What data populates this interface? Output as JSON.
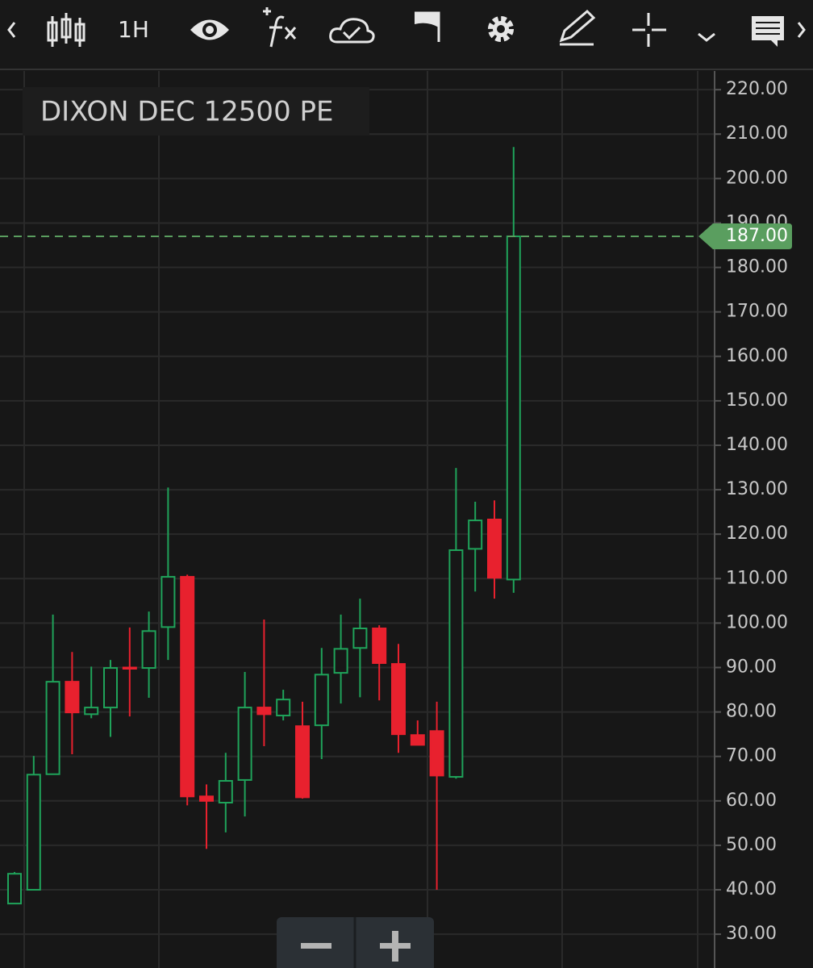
{
  "toolbar": {
    "interval": "1H"
  },
  "chart_data": {
    "type": "candlestick",
    "title": "DIXON DEC 12500 PE",
    "open": [
      36.9,
      40,
      66,
      86.8,
      79.5,
      81,
      90,
      89.9,
      99.1,
      110.4,
      61,
      59.6,
      64.7,
      81,
      79.2,
      76.8,
      77,
      88.8,
      94.4,
      98.8,
      90.8,
      74.8,
      75.7,
      65.4,
      116.7,
      123.3,
      109.8
    ],
    "high": [
      44,
      70.1,
      101.9,
      93.5,
      90.2,
      91.7,
      99,
      102.6,
      130.5,
      110.9,
      63.7,
      70.8,
      89,
      100.8,
      85,
      82.3,
      94.4,
      101.9,
      105.5,
      99.5,
      95.3,
      78.1,
      82.3,
      134.9,
      127.3,
      127.6,
      207.1
    ],
    "low": [
      36.9,
      40,
      66,
      70.5,
      78.6,
      74.4,
      79,
      83.2,
      91.7,
      59,
      49.2,
      52.9,
      56.5,
      72.3,
      78.1,
      60.5,
      69.4,
      81.9,
      83.3,
      82.6,
      70.8,
      72.6,
      40,
      65,
      107.1,
      105.5,
      106.8
    ],
    "close": [
      43.6,
      65.9,
      86.8,
      79.9,
      81,
      89.9,
      89.8,
      98.2,
      110.4,
      61,
      60,
      64.5,
      81,
      79.5,
      82.8,
      60.8,
      88.4,
      94.2,
      98.8,
      91,
      75,
      72.6,
      65.7,
      116.4,
      123.1,
      110.2,
      187
    ],
    "up_color": "#1fa35a",
    "down_color": "#e8212e",
    "ylim": [
      22.4,
      224.2
    ],
    "yticks": [
      {
        "value": 30,
        "label": "30.00"
      },
      {
        "value": 40,
        "label": "40.00"
      },
      {
        "value": 50,
        "label": "50.00"
      },
      {
        "value": 60,
        "label": "60.00"
      },
      {
        "value": 70,
        "label": "70.00"
      },
      {
        "value": 80,
        "label": "80.00"
      },
      {
        "value": 90,
        "label": "90.00"
      },
      {
        "value": 100,
        "label": "100.00"
      },
      {
        "value": 110,
        "label": "110.00"
      },
      {
        "value": 120,
        "label": "120.00"
      },
      {
        "value": 130,
        "label": "130.00"
      },
      {
        "value": 140,
        "label": "140.00"
      },
      {
        "value": 150,
        "label": "150.00"
      },
      {
        "value": 160,
        "label": "160.00"
      },
      {
        "value": 170,
        "label": "170.00"
      },
      {
        "value": 180,
        "label": "180.00"
      },
      {
        "value": 190,
        "label": "190.00"
      },
      {
        "value": 200,
        "label": "200.00"
      },
      {
        "value": 210,
        "label": "210.00"
      },
      {
        "value": 220,
        "label": "220.00"
      }
    ],
    "last_price": {
      "value": 187,
      "label": "187.00"
    },
    "last_price_color": "#5a9e5f",
    "grid": true
  }
}
